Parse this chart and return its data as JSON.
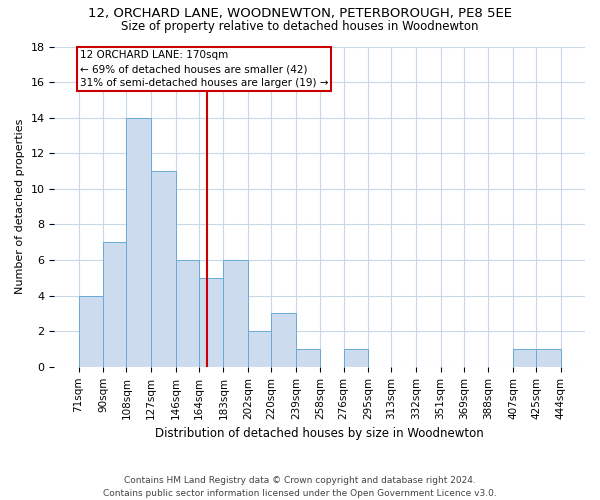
{
  "title": "12, ORCHARD LANE, WOODNEWTON, PETERBOROUGH, PE8 5EE",
  "subtitle": "Size of property relative to detached houses in Woodnewton",
  "xlabel": "Distribution of detached houses by size in Woodnewton",
  "ylabel": "Number of detached properties",
  "footnote1": "Contains HM Land Registry data © Crown copyright and database right 2024.",
  "footnote2": "Contains public sector information licensed under the Open Government Licence v3.0.",
  "annotation_line1": "12 ORCHARD LANE: 170sqm",
  "annotation_line2": "← 69% of detached houses are smaller (42)",
  "annotation_line3": "31% of semi-detached houses are larger (19) →",
  "property_size": 170,
  "bin_edges": [
    71,
    90,
    108,
    127,
    146,
    164,
    183,
    202,
    220,
    239,
    258,
    276,
    295,
    313,
    332,
    351,
    369,
    388,
    407,
    425,
    444
  ],
  "bin_counts": [
    4,
    7,
    14,
    11,
    6,
    5,
    6,
    2,
    3,
    1,
    0,
    1,
    0,
    0,
    0,
    0,
    0,
    0,
    1,
    1
  ],
  "bar_color": "#ccdcee",
  "bar_edge_color": "#6aaad4",
  "highlight_line_color": "#cc0000",
  "annotation_box_color": "#cc0000",
  "grid_color": "#c8d8e8",
  "background_color": "#ffffff",
  "ylim": [
    0,
    18
  ],
  "yticks": [
    0,
    2,
    4,
    6,
    8,
    10,
    12,
    14,
    16,
    18
  ]
}
